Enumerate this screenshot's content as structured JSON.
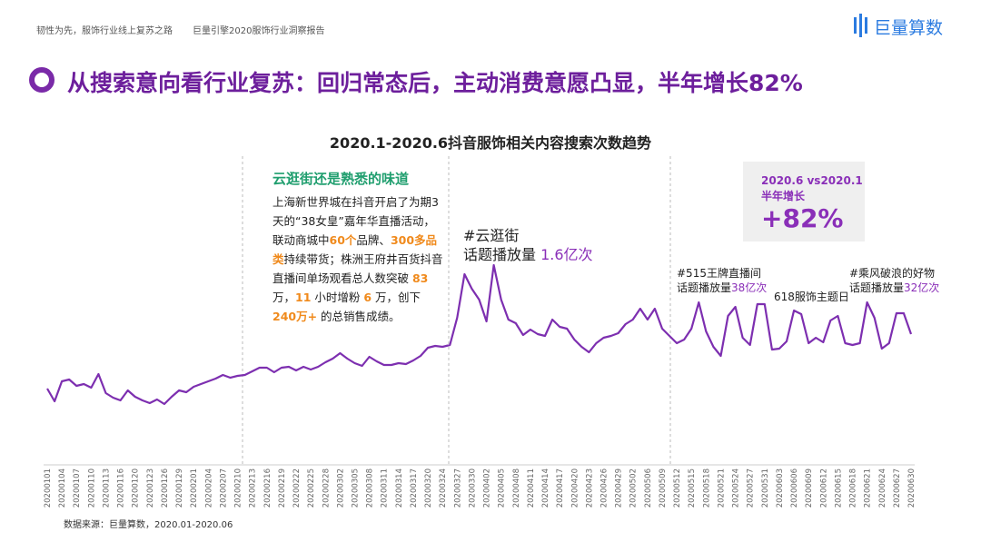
{
  "header": {
    "report_subtitle": "韧性为先，服饰行业线上复苏之路",
    "report_name": "巨量引擎2020服饰行业洞察报告",
    "brand": "巨量算数"
  },
  "heading": "从搜索意向看行业复苏：回归常态后，主动消费意愿凸显，半年增长82%",
  "chart_data": {
    "type": "line",
    "title": "2020.1-2020.6抖音服饰相关内容搜索次数趋势",
    "color": "#7d2fb0",
    "ylim": [
      0,
      230
    ],
    "categories": [
      "20200101",
      null,
      "20200104",
      null,
      "20200107",
      null,
      "20200110",
      null,
      "20200113",
      null,
      "20200116",
      null,
      "20200120",
      null,
      "20200123",
      null,
      "20200126",
      null,
      "20200129",
      null,
      "20200201",
      null,
      "20200204",
      null,
      "20200207",
      null,
      "20200210",
      null,
      "20200213",
      null,
      "20200216",
      null,
      "20200219",
      null,
      "20200222",
      null,
      "20200225",
      null,
      "20200228",
      null,
      "20200302",
      null,
      "20200305",
      null,
      "20200308",
      null,
      "20200311",
      null,
      "20200314",
      null,
      "20200317",
      null,
      "20200320",
      null,
      "20200324",
      null,
      "20200327",
      null,
      "20200330",
      null,
      "20200402",
      null,
      "20200405",
      null,
      "20200408",
      null,
      "20200411",
      null,
      "20200414",
      null,
      "20200417",
      null,
      "20200420",
      null,
      "20200423",
      null,
      "20200426",
      null,
      "20200429",
      null,
      "20200502",
      null,
      "20200506",
      null,
      "20200509",
      null,
      "20200512",
      null,
      "20200515",
      null,
      "20200518",
      null,
      "20200521",
      null,
      "20200524",
      null,
      "20200527",
      null,
      "20200531",
      null,
      "20200603",
      null,
      "20200606",
      null,
      "20200609",
      null,
      "20200612",
      null,
      "20200615",
      null,
      "20200618",
      null,
      "20200621",
      null,
      "20200624",
      null,
      "20200627",
      null,
      "20200630"
    ],
    "values": [
      82,
      68,
      90,
      92,
      85,
      87,
      83,
      98,
      77,
      72,
      69,
      80,
      73,
      69,
      66,
      70,
      65,
      73,
      80,
      78,
      84,
      87,
      90,
      93,
      97,
      94,
      96,
      97,
      101,
      105,
      105,
      100,
      105,
      106,
      102,
      106,
      103,
      106,
      111,
      115,
      121,
      115,
      110,
      107,
      117,
      112,
      108,
      108,
      110,
      109,
      113,
      118,
      127,
      129,
      128,
      130,
      160,
      208,
      192,
      180,
      156,
      218,
      180,
      158,
      154,
      141,
      147,
      142,
      140,
      158,
      150,
      148,
      136,
      128,
      122,
      132,
      138,
      140,
      143,
      153,
      158,
      170,
      158,
      170,
      148,
      140,
      132,
      136,
      148,
      177,
      145,
      128,
      118,
      162,
      172,
      138,
      130,
      175,
      175,
      125,
      126,
      134,
      168,
      164,
      132,
      138,
      133,
      157,
      162,
      132,
      130,
      132,
      177,
      160,
      126,
      132,
      165,
      165,
      142
    ],
    "annotations": [
      {
        "title": "云逛街还是熟悉的味道",
        "segments": [
          "上海新世界城在抖音开启了为期3天的“38女皇”嘉年华直播活动，联动商城中",
          "60个",
          "品牌、",
          "300多品类",
          "持续带货；株洲王府井百货抖音直播间单场观看总人数突破 ",
          "83",
          " 万，",
          "11",
          " 小时增粉 ",
          "6",
          " 万，创下 ",
          "240万+",
          " 的总销售成绩。"
        ]
      },
      {
        "title": "#云逛街",
        "label": "话题播放量 ",
        "highlight": "1.6亿次"
      },
      {
        "title": "#515王牌直播间",
        "label": "话题播放量",
        "highlight": "38亿次"
      },
      {
        "title": "618服饰主题日"
      },
      {
        "title": "#乘风破浪的好物",
        "label": "话题播放量",
        "highlight": "32亿次"
      }
    ],
    "stat_box": {
      "line1": "2020.6 vs2020.1",
      "line2": "半年增长",
      "value": "+82%"
    }
  },
  "source": "数据来源：巨量算数，2020.01-2020.06"
}
